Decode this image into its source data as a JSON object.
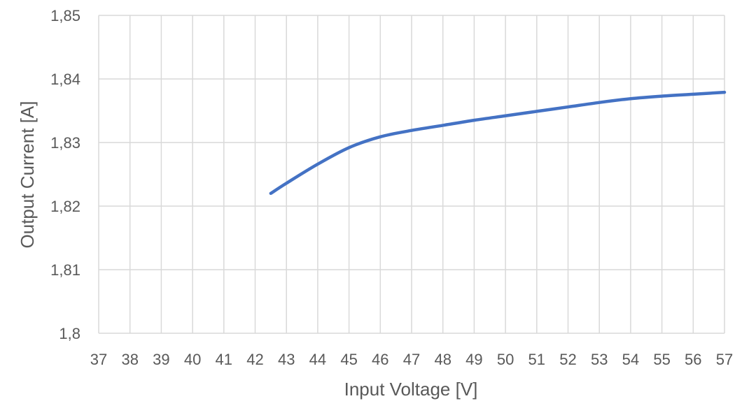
{
  "chart_data": {
    "type": "line",
    "xlabel": "Input Voltage [V]",
    "ylabel": "Output Current [A]",
    "xlim": [
      37,
      57
    ],
    "ylim": [
      1.8,
      1.85
    ],
    "x_ticks": [
      37,
      38,
      39,
      40,
      41,
      42,
      43,
      44,
      45,
      46,
      47,
      48,
      49,
      50,
      51,
      52,
      53,
      54,
      55,
      56,
      57
    ],
    "y_ticks": [
      1.8,
      1.81,
      1.82,
      1.83,
      1.84,
      1.85
    ],
    "x_tick_labels": [
      "37",
      "38",
      "39",
      "40",
      "41",
      "42",
      "43",
      "44",
      "45",
      "46",
      "47",
      "48",
      "49",
      "50",
      "51",
      "52",
      "53",
      "54",
      "55",
      "56",
      "57"
    ],
    "y_tick_labels": [
      "1,8",
      "1,81",
      "1,82",
      "1,83",
      "1,84",
      "1,85"
    ],
    "grid": true,
    "series": [
      {
        "color": "#4472c4",
        "x": [
          42.5,
          43,
          44,
          45,
          46,
          47,
          48,
          49,
          50,
          51,
          52,
          53,
          54,
          55,
          56,
          57
        ],
        "y": [
          1.822,
          1.8236,
          1.8266,
          1.8292,
          1.8309,
          1.8319,
          1.8327,
          1.8335,
          1.8342,
          1.8349,
          1.8356,
          1.8363,
          1.8369,
          1.8373,
          1.8376,
          1.8379
        ]
      }
    ]
  }
}
